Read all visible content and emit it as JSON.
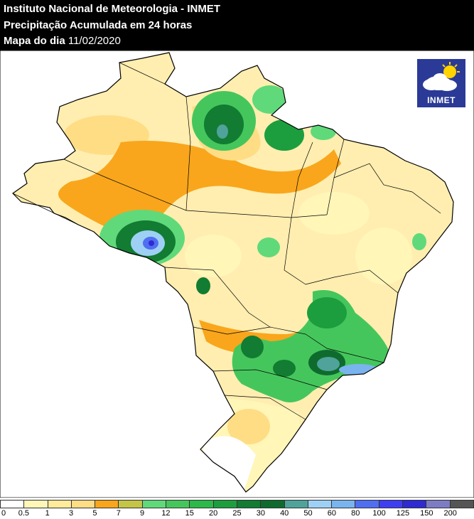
{
  "header": {
    "title": "Instituto Nacional de Meteorologia - INMET",
    "subtitle": "Precipitação Acumulada em 24 horas",
    "date_prefix": "Mapa do dia",
    "date": "11/02/2020"
  },
  "logo": {
    "text": "INMET",
    "icon": "sun-cloud-icon"
  },
  "legend": {
    "colors": [
      "#ffffff",
      "#fff6b8",
      "#ffeb9a",
      "#ffdd85",
      "#f9a61c",
      "#c4c447",
      "#60d97a",
      "#45c65c",
      "#2db84a",
      "#1d9e3e",
      "#117c32",
      "#0e6b2d",
      "#4fa39a",
      "#9ed0f5",
      "#7ab4ef",
      "#4f6ef0",
      "#3f3ff2",
      "#2f2ad1",
      "#7c7cc4",
      "#555555"
    ],
    "ticks": [
      "0",
      "0.5",
      "1",
      "3",
      "5",
      "7",
      "9",
      "12",
      "15",
      "20",
      "25",
      "30",
      "40",
      "50",
      "60",
      "80",
      "100",
      "125",
      "150",
      "200"
    ]
  }
}
